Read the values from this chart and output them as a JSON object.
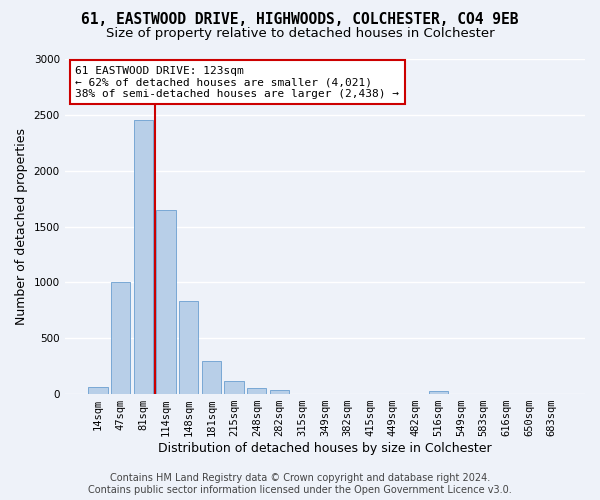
{
  "title_line1": "61, EASTWOOD DRIVE, HIGHWOODS, COLCHESTER, CO4 9EB",
  "title_line2": "Size of property relative to detached houses in Colchester",
  "xlabel": "Distribution of detached houses by size in Colchester",
  "ylabel": "Number of detached properties",
  "bar_labels": [
    "14sqm",
    "47sqm",
    "81sqm",
    "114sqm",
    "148sqm",
    "181sqm",
    "215sqm",
    "248sqm",
    "282sqm",
    "315sqm",
    "349sqm",
    "382sqm",
    "415sqm",
    "449sqm",
    "482sqm",
    "516sqm",
    "549sqm",
    "583sqm",
    "616sqm",
    "650sqm",
    "683sqm"
  ],
  "bar_values": [
    60,
    1000,
    2450,
    1650,
    830,
    300,
    120,
    50,
    40,
    0,
    0,
    0,
    0,
    0,
    0,
    30,
    0,
    0,
    0,
    0,
    0
  ],
  "bar_color": "#b8cfe8",
  "bar_edgecolor": "#6a9fd0",
  "background_color": "#eef2f9",
  "grid_color": "#ffffff",
  "vline_x_index": 3,
  "property_sqm": 123,
  "annotation_text": "61 EASTWOOD DRIVE: 123sqm\n← 62% of detached houses are smaller (4,021)\n38% of semi-detached houses are larger (2,438) →",
  "annotation_box_facecolor": "#ffffff",
  "annotation_box_edgecolor": "#cc0000",
  "vline_color": "#cc0000",
  "ylim": [
    0,
    3000
  ],
  "yticks": [
    0,
    500,
    1000,
    1500,
    2000,
    2500,
    3000
  ],
  "title_fontsize": 10.5,
  "subtitle_fontsize": 9.5,
  "axis_label_fontsize": 9,
  "tick_fontsize": 7.5,
  "annotation_fontsize": 8,
  "footer_fontsize": 7,
  "footer_text": "Contains HM Land Registry data © Crown copyright and database right 2024.\nContains public sector information licensed under the Open Government Licence v3.0."
}
